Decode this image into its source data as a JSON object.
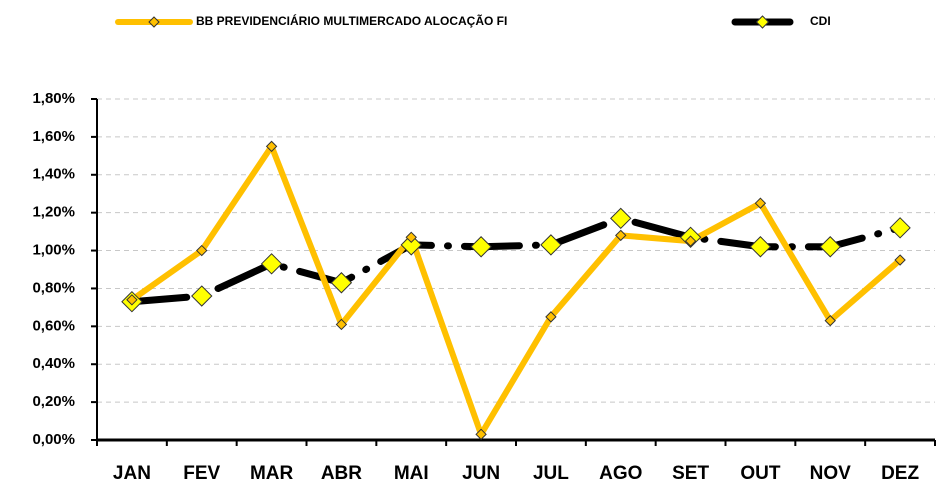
{
  "chart_data": {
    "type": "line",
    "categories": [
      "JAN",
      "FEV",
      "MAR",
      "ABR",
      "MAI",
      "JUN",
      "JUL",
      "AGO",
      "SET",
      "OUT",
      "NOV",
      "DEZ"
    ],
    "series": [
      {
        "name": "BB PREVIDENCIÁRIO MULTIMERCADO ALOCAÇÃO FI",
        "color": "#ffc000",
        "values": [
          0.74,
          1.0,
          1.55,
          0.61,
          1.07,
          0.03,
          0.65,
          1.08,
          1.05,
          1.25,
          0.63,
          0.95
        ]
      },
      {
        "name": "CDI",
        "color": "#000000",
        "values": [
          0.73,
          0.76,
          0.93,
          0.83,
          1.03,
          1.02,
          1.03,
          1.17,
          1.07,
          1.02,
          1.02,
          1.12
        ]
      }
    ],
    "ylim": [
      0,
      1.8
    ],
    "yticks": [
      {
        "value": 0,
        "label": "0,00%"
      },
      {
        "value": 0.2,
        "label": "0,20%"
      },
      {
        "value": 0.4,
        "label": "0,40%"
      },
      {
        "value": 0.6,
        "label": "0,60%"
      },
      {
        "value": 0.8,
        "label": "0,80%"
      },
      {
        "value": 1.0,
        "label": "1,00%"
      },
      {
        "value": 1.2,
        "label": "1,20%"
      },
      {
        "value": 1.4,
        "label": "1,40%"
      },
      {
        "value": 1.6,
        "label": "1,60%"
      },
      {
        "value": 1.8,
        "label": "1,80%"
      }
    ],
    "grid": true
  }
}
